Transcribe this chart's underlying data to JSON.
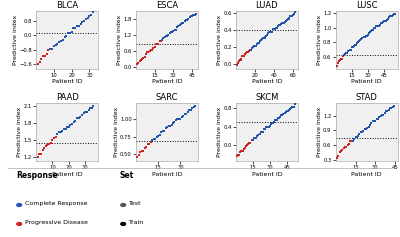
{
  "panels": [
    {
      "title": "BLCA",
      "n_total": 32,
      "n_red": 7,
      "y_min": -1.6,
      "y_max": 1.2,
      "threshold": 0.1,
      "x_max": 35
    },
    {
      "title": "ESCA",
      "n_total": 48,
      "n_red": 20,
      "y_min": 0.1,
      "y_max": 2.0,
      "threshold": 0.85,
      "x_max": 50
    },
    {
      "title": "LUAD",
      "n_total": 62,
      "n_red": 15,
      "y_min": 0.0,
      "y_max": 0.6,
      "threshold": 0.4,
      "x_max": 65
    },
    {
      "title": "LUSC",
      "n_total": 55,
      "n_red": 7,
      "y_min": 0.5,
      "y_max": 1.2,
      "threshold": 0.63,
      "x_max": 58
    },
    {
      "title": "PAAD",
      "n_total": 35,
      "n_red": 12,
      "y_min": 1.2,
      "y_max": 2.1,
      "threshold": 1.45,
      "x_max": 38
    },
    {
      "title": "SARC",
      "n_total": 40,
      "n_red": 10,
      "y_min": 0.45,
      "y_max": 1.2,
      "threshold": 0.68,
      "x_max": 42
    },
    {
      "title": "SKCM",
      "n_total": 52,
      "n_red": 14,
      "y_min": -0.25,
      "y_max": 0.85,
      "threshold": 0.5,
      "x_max": 55
    },
    {
      "title": "STAD",
      "n_total": 44,
      "n_red": 12,
      "y_min": 0.35,
      "y_max": 1.4,
      "threshold": 0.75,
      "x_max": 47
    }
  ],
  "color_blue": "#2255aa",
  "color_red": "#cc2222",
  "bg_color": "#f0f0f0",
  "dot_size": 3.5,
  "axis_label_fontsize": 4.5,
  "title_fontsize": 6.0,
  "tick_fontsize": 3.8
}
